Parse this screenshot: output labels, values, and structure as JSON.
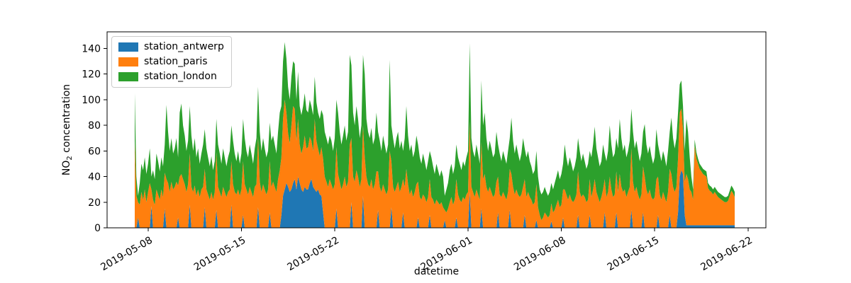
{
  "figure": {
    "title": "",
    "xlabel": "datetime",
    "ylabel_prefix": "NO",
    "ylabel_sub": "2",
    "ylabel_suffix": " concentration"
  },
  "legend": {
    "position": "upper left",
    "items": [
      {
        "label": "station_antwerp",
        "color": "#1f77b4"
      },
      {
        "label": "station_paris",
        "color": "#ff7f0e"
      },
      {
        "label": "station_london",
        "color": "#2ca02c"
      }
    ]
  },
  "chart_data": {
    "type": "area",
    "stacked": true,
    "title": "",
    "xlabel": "datetime",
    "ylabel": "NO2 concentration",
    "grid": false,
    "legend_position": "upper left",
    "x_start": "2019-05-07 00:00",
    "x_step_hours": 3,
    "x_ticks": [
      {
        "day": 1,
        "label": "2019-05-08"
      },
      {
        "day": 8,
        "label": "2019-05-15"
      },
      {
        "day": 15,
        "label": "2019-05-22"
      },
      {
        "day": 25,
        "label": "2019-06-01"
      },
      {
        "day": 32,
        "label": "2019-06-08"
      },
      {
        "day": 39,
        "label": "2019-06-15"
      },
      {
        "day": 46,
        "label": "2019-06-22"
      }
    ],
    "y_ticks": [
      0,
      20,
      40,
      60,
      80,
      100,
      120,
      140
    ],
    "ylim": [
      0,
      153
    ],
    "series": [
      {
        "name": "station_antwerp",
        "color": "#1f77b4",
        "values": [
          0,
          0,
          8,
          0,
          0,
          0,
          0,
          0,
          0,
          0,
          17,
          0,
          0,
          0,
          0,
          0,
          0,
          0,
          15,
          0,
          0,
          0,
          0,
          0,
          0,
          0,
          8,
          0,
          0,
          0,
          0,
          0,
          0,
          18,
          0,
          0,
          0,
          0,
          0,
          0,
          0,
          0,
          16,
          0,
          0,
          0,
          0,
          0,
          0,
          14,
          0,
          0,
          0,
          0,
          0,
          0,
          0,
          0,
          18,
          0,
          0,
          0,
          0,
          0,
          0,
          10,
          0,
          0,
          0,
          0,
          0,
          0,
          0,
          0,
          16,
          0,
          0,
          0,
          0,
          0,
          0,
          12,
          0,
          0,
          0,
          0,
          0,
          0,
          10,
          25,
          30,
          35,
          32,
          28,
          30,
          35,
          38,
          30,
          40,
          35,
          30,
          28,
          32,
          30,
          30,
          35,
          38,
          32,
          30,
          28,
          30,
          26,
          25,
          12,
          0,
          0,
          0,
          0,
          0,
          0,
          0,
          15,
          0,
          0,
          0,
          0,
          0,
          0,
          0,
          0,
          20,
          0,
          0,
          0,
          0,
          0,
          0,
          25,
          0,
          0,
          0,
          0,
          0,
          0,
          0,
          0,
          14,
          0,
          0,
          0,
          0,
          0,
          0,
          0,
          16,
          0,
          0,
          0,
          0,
          0,
          0,
          12,
          0,
          0,
          0,
          0,
          0,
          0,
          0,
          0,
          8,
          0,
          0,
          0,
          0,
          0,
          0,
          10,
          0,
          0,
          0,
          0,
          0,
          0,
          0,
          0,
          6,
          0,
          0,
          0,
          0,
          0,
          0,
          8,
          0,
          0,
          0,
          0,
          0,
          0,
          0,
          28,
          0,
          0,
          0,
          0,
          0,
          0,
          15,
          0,
          0,
          0,
          0,
          0,
          0,
          0,
          0,
          0,
          12,
          0,
          0,
          0,
          0,
          0,
          0,
          14,
          0,
          0,
          0,
          0,
          0,
          0,
          0,
          0,
          10,
          0,
          0,
          0,
          0,
          0,
          0,
          6,
          0,
          0,
          0,
          0,
          0,
          0,
          0,
          0,
          5,
          0,
          0,
          0,
          0,
          0,
          0,
          8,
          0,
          0,
          0,
          0,
          0,
          0,
          0,
          0,
          10,
          0,
          0,
          0,
          0,
          0,
          0,
          10,
          0,
          0,
          0,
          0,
          0,
          0,
          0,
          0,
          12,
          0,
          0,
          0,
          0,
          0,
          0,
          12,
          0,
          0,
          0,
          0,
          0,
          0,
          0,
          0,
          14,
          0,
          0,
          0,
          0,
          0,
          0,
          12,
          0,
          0,
          0,
          0,
          0,
          0,
          0,
          0,
          10,
          0,
          0,
          0,
          0,
          0,
          0,
          10,
          0,
          0,
          0,
          0,
          12,
          40,
          45,
          42,
          10,
          2,
          2,
          2,
          2,
          2,
          2,
          2,
          2,
          2,
          2,
          2,
          2,
          2,
          2,
          2,
          2,
          2,
          2,
          2,
          2,
          2,
          2,
          2,
          2,
          2,
          2,
          2,
          2,
          2,
          2
        ]
      },
      {
        "name": "station_paris",
        "color": "#ff7f0e",
        "values": [
          68,
          25,
          12,
          18,
          28,
          22,
          30,
          20,
          28,
          35,
          13,
          22,
          18,
          30,
          26,
          22,
          30,
          24,
          28,
          38,
          35,
          28,
          36,
          30,
          32,
          36,
          25,
          40,
          42,
          38,
          34,
          28,
          34,
          40,
          32,
          28,
          33,
          25,
          30,
          24,
          30,
          32,
          30,
          30,
          26,
          22,
          28,
          22,
          28,
          45,
          32,
          28,
          24,
          32,
          28,
          24,
          28,
          30,
          34,
          34,
          28,
          26,
          30,
          25,
          30,
          42,
          34,
          30,
          26,
          32,
          28,
          24,
          32,
          34,
          55,
          36,
          28,
          34,
          30,
          26,
          30,
          40,
          32,
          36,
          32,
          28,
          38,
          45,
          45,
          60,
          70,
          55,
          42,
          38,
          50,
          60,
          55,
          38,
          45,
          30,
          28,
          35,
          40,
          32,
          33,
          36,
          30,
          28,
          55,
          40,
          32,
          30,
          38,
          42,
          40,
          36,
          32,
          38,
          34,
          30,
          34,
          48,
          42,
          36,
          30,
          34,
          40,
          32,
          36,
          65,
          50,
          40,
          36,
          45,
          40,
          32,
          38,
          55,
          55,
          40,
          34,
          32,
          38,
          30,
          34,
          44,
          30,
          32,
          28,
          34,
          30,
          26,
          30,
          60,
          36,
          32,
          28,
          32,
          36,
          28,
          32,
          26,
          32,
          46,
          34,
          26,
          30,
          24,
          28,
          34,
          28,
          24,
          22,
          26,
          24,
          20,
          24,
          28,
          24,
          22,
          18,
          22,
          20,
          18,
          20,
          16,
          8,
          12,
          15,
          20,
          24,
          18,
          22,
          30,
          26,
          22,
          20,
          24,
          22,
          26,
          28,
          55,
          32,
          28,
          24,
          30,
          26,
          22,
          52,
          38,
          42,
          32,
          28,
          32,
          28,
          24,
          26,
          36,
          28,
          26,
          24,
          28,
          25,
          22,
          28,
          32,
          42,
          32,
          26,
          30,
          26,
          24,
          26,
          32,
          28,
          24,
          28,
          24,
          22,
          18,
          20,
          28,
          16,
          10,
          6,
          8,
          12,
          10,
          8,
          10,
          14,
          12,
          14,
          18,
          22,
          16,
          18,
          22,
          30,
          26,
          22,
          26,
          22,
          20,
          22,
          26,
          34,
          28,
          24,
          26,
          24,
          20,
          22,
          28,
          24,
          30,
          38,
          28,
          24,
          20,
          24,
          30,
          26,
          24,
          28,
          40,
          30,
          24,
          26,
          32,
          28,
          42,
          32,
          28,
          30,
          24,
          28,
          32,
          48,
          36,
          28,
          32,
          26,
          22,
          26,
          36,
          40,
          30,
          26,
          30,
          24,
          22,
          24,
          38,
          30,
          26,
          22,
          28,
          24,
          20,
          28,
          36,
          42,
          32,
          28,
          32,
          42,
          50,
          48,
          35,
          26,
          40,
          36,
          28,
          26,
          20,
          62,
          52,
          48,
          44,
          42,
          40,
          39,
          38,
          29,
          27,
          26,
          24,
          26,
          24,
          22,
          21,
          20,
          19,
          18,
          18,
          19,
          23,
          27,
          25,
          22
        ]
      },
      {
        "name": "station_london",
        "color": "#2ca02c",
        "values": [
          37,
          15,
          5,
          17,
          22,
          23,
          25,
          22,
          22,
          27,
          10,
          23,
          20,
          28,
          26,
          22,
          25,
          24,
          22,
          58,
          40,
          32,
          34,
          28,
          30,
          34,
          22,
          50,
          55,
          42,
          38,
          32,
          34,
          37,
          40,
          32,
          37,
          30,
          32,
          26,
          28,
          33,
          31,
          32,
          29,
          26,
          28,
          23,
          24,
          26,
          33,
          30,
          26,
          30,
          27,
          24,
          27,
          30,
          28,
          34,
          30,
          26,
          30,
          25,
          28,
          33,
          36,
          30,
          29,
          33,
          30,
          26,
          30,
          36,
          39,
          39,
          32,
          36,
          32,
          29,
          30,
          30,
          36,
          36,
          33,
          30,
          37,
          45,
          40,
          45,
          45,
          42,
          36,
          34,
          38,
          35,
          35,
          32,
          37,
          30,
          30,
          32,
          33,
          30,
          27,
          29,
          27,
          28,
          33,
          30,
          28,
          29,
          29,
          34,
          35,
          34,
          33,
          34,
          34,
          30,
          36,
          37,
          48,
          39,
          35,
          38,
          40,
          36,
          39,
          70,
          57,
          50,
          44,
          50,
          45,
          38,
          42,
          55,
          65,
          45,
          41,
          38,
          40,
          35,
          36,
          46,
          31,
          36,
          32,
          38,
          35,
          32,
          35,
          71,
          28,
          38,
          34,
          38,
          39,
          34,
          36,
          22,
          38,
          49,
          38,
          34,
          35,
          31,
          32,
          38,
          29,
          31,
          28,
          32,
          28,
          25,
          28,
          22,
          31,
          26,
          24,
          28,
          25,
          22,
          25,
          24,
          11,
          18,
          20,
          25,
          26,
          24,
          26,
          27,
          29,
          28,
          25,
          28,
          26,
          29,
          32,
          61,
          38,
          32,
          31,
          35,
          32,
          28,
          48,
          42,
          48,
          38,
          32,
          36,
          34,
          31,
          32,
          39,
          25,
          32,
          28,
          32,
          30,
          28,
          32,
          24,
          44,
          36,
          32,
          35,
          32,
          28,
          32,
          38,
          24,
          31,
          32,
          28,
          26,
          24,
          25,
          26,
          24,
          20,
          20,
          20,
          20,
          18,
          17,
          18,
          16,
          18,
          21,
          22,
          23,
          22,
          24,
          20,
          35,
          29,
          26,
          29,
          28,
          24,
          26,
          29,
          26,
          32,
          28,
          32,
          28,
          26,
          28,
          22,
          31,
          35,
          41,
          34,
          31,
          28,
          28,
          35,
          20,
          28,
          32,
          40,
          35,
          31,
          32,
          26,
          34,
          43,
          38,
          32,
          35,
          31,
          32,
          36,
          31,
          39,
          34,
          36,
          34,
          30,
          32,
          27,
          41,
          35,
          32,
          34,
          32,
          28,
          31,
          39,
          25,
          32,
          30,
          32,
          31,
          28,
          32,
          29,
          44,
          38,
          34,
          38,
          36,
          22,
          22,
          18,
          24,
          43,
          37,
          25,
          12,
          8,
          5,
          5,
          4,
          4,
          4,
          4,
          4,
          4,
          4,
          4,
          4,
          4,
          4,
          4,
          4,
          4,
          4,
          4,
          4,
          4,
          4,
          4,
          4,
          4,
          4
        ]
      }
    ]
  }
}
